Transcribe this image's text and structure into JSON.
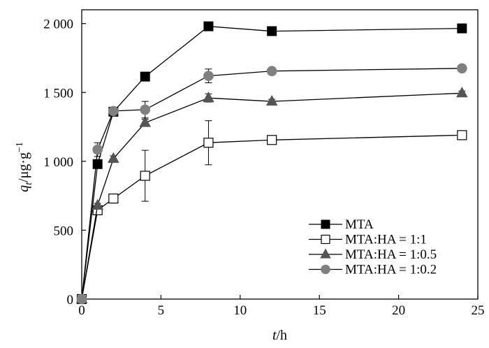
{
  "chart_data": {
    "type": "line",
    "x_axis": {
      "var": "t",
      "unit": "/h",
      "range": [
        0,
        25
      ],
      "ticks": [
        0,
        5,
        10,
        15,
        20,
        25
      ]
    },
    "y_axis": {
      "var": "q",
      "sub": "t",
      "unit": "/μg·g",
      "sup": "−1",
      "range": [
        0,
        2100
      ],
      "ticks": [
        0,
        500,
        1000,
        1500,
        2000
      ],
      "tick_labels": [
        "0",
        "500",
        "1 000",
        "1 500",
        "2 000"
      ]
    },
    "grid": false,
    "legend_position": "bottom-right",
    "series": [
      {
        "name": "MTA",
        "marker": "square-filled",
        "color": "#000000",
        "points": [
          [
            0,
            0
          ],
          [
            1,
            980
          ],
          [
            2,
            1360
          ],
          [
            4,
            1615
          ],
          [
            8,
            1980
          ],
          [
            12,
            1945
          ],
          [
            24,
            1965
          ]
        ],
        "errors": [
          0,
          15,
          15,
          25,
          30,
          15,
          15
        ]
      },
      {
        "name": "MTA:HA = 1:1",
        "marker": "square-open",
        "color": "#000000",
        "points": [
          [
            0,
            0
          ],
          [
            1,
            645
          ],
          [
            2,
            730
          ],
          [
            4,
            895
          ],
          [
            8,
            1135
          ],
          [
            12,
            1155
          ],
          [
            24,
            1190
          ]
        ],
        "errors": [
          0,
          15,
          20,
          185,
          160,
          30,
          15
        ]
      },
      {
        "name": "MTA:HA = 1:0.5",
        "marker": "triangle-filled",
        "color": "#555555",
        "points": [
          [
            0,
            0
          ],
          [
            1,
            680
          ],
          [
            2,
            1020
          ],
          [
            4,
            1280
          ],
          [
            8,
            1460
          ],
          [
            12,
            1435
          ],
          [
            24,
            1495
          ]
        ],
        "errors": [
          0,
          15,
          20,
          25,
          30,
          15,
          15
        ]
      },
      {
        "name": "MTA:HA = 1:0.2",
        "marker": "circle-filled",
        "color": "#808080",
        "points": [
          [
            0,
            0
          ],
          [
            1,
            1085
          ],
          [
            2,
            1365
          ],
          [
            4,
            1375
          ],
          [
            8,
            1620
          ],
          [
            12,
            1655
          ],
          [
            24,
            1675
          ]
        ],
        "errors": [
          0,
          50,
          20,
          60,
          50,
          15,
          15
        ]
      }
    ]
  }
}
